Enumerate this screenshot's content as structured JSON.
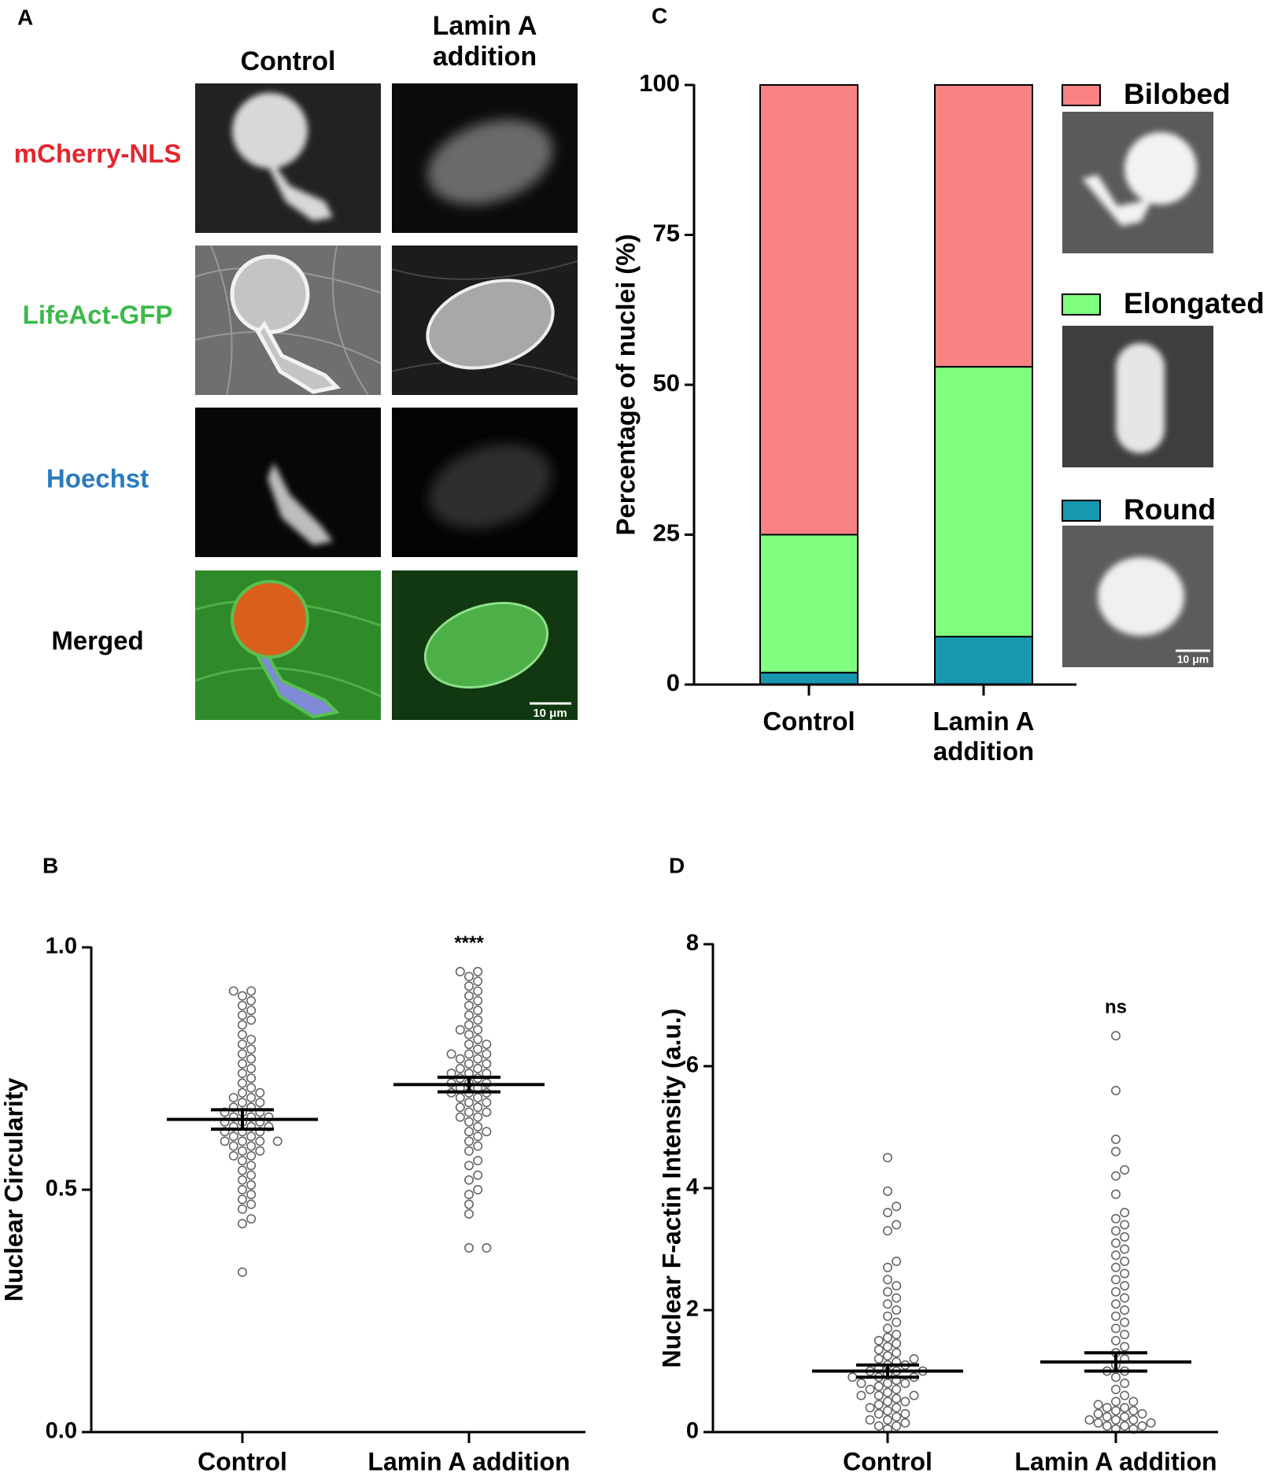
{
  "figure_a": {
    "panel": "A",
    "columns": [
      "Control",
      "Lamin A addition"
    ],
    "rows": [
      {
        "label": "mCherry-NLS",
        "color": "#e3262d"
      },
      {
        "label": "LifeAct-GFP",
        "color": "#3cb94a"
      },
      {
        "label": "Hoechst",
        "color": "#2a7bbf"
      },
      {
        "label": "Merged",
        "color": "#000000"
      }
    ],
    "scale_bar": "10 μm"
  },
  "chart_data": [
    {
      "type": "bar",
      "stacked": true,
      "panel": "C",
      "y_label": "Percentage of nuclei (%)",
      "categories": [
        "Control",
        "Lamin A addition"
      ],
      "series": [
        {
          "name": "Round",
          "color": "#1797b0",
          "values": [
            2,
            8
          ]
        },
        {
          "name": "Elongated",
          "color": "#80ff80",
          "values": [
            23,
            45
          ]
        },
        {
          "name": "Bilobed",
          "color": "#f98383",
          "values": [
            75,
            47
          ]
        }
      ],
      "ylim": [
        0,
        100
      ],
      "yticks": [
        0,
        25,
        50,
        75,
        100
      ],
      "legend": "right",
      "scale_bar": "10 μm"
    },
    {
      "type": "swarm",
      "panel": "B",
      "y_label": "Nuclear Circularity",
      "categories": [
        "Control",
        "Lamin A addition"
      ],
      "values": [
        [
          0.33,
          0.43,
          0.44,
          0.46,
          0.47,
          0.48,
          0.49,
          0.5,
          0.51,
          0.52,
          0.53,
          0.54,
          0.55,
          0.56,
          0.57,
          0.57,
          0.58,
          0.58,
          0.59,
          0.59,
          0.6,
          0.6,
          0.6,
          0.61,
          0.61,
          0.62,
          0.62,
          0.62,
          0.63,
          0.63,
          0.63,
          0.64,
          0.64,
          0.64,
          0.65,
          0.65,
          0.65,
          0.66,
          0.66,
          0.66,
          0.67,
          0.67,
          0.68,
          0.68,
          0.69,
          0.69,
          0.7,
          0.7,
          0.71,
          0.72,
          0.73,
          0.74,
          0.75,
          0.76,
          0.77,
          0.78,
          0.79,
          0.8,
          0.81,
          0.82,
          0.84,
          0.85,
          0.86,
          0.87,
          0.88,
          0.89,
          0.9,
          0.91,
          0.91,
          0.6
        ],
        [
          0.38,
          0.38,
          0.45,
          0.47,
          0.49,
          0.5,
          0.52,
          0.53,
          0.55,
          0.56,
          0.58,
          0.59,
          0.6,
          0.61,
          0.62,
          0.63,
          0.64,
          0.65,
          0.65,
          0.66,
          0.67,
          0.67,
          0.68,
          0.68,
          0.69,
          0.69,
          0.7,
          0.7,
          0.71,
          0.71,
          0.72,
          0.72,
          0.72,
          0.73,
          0.73,
          0.74,
          0.74,
          0.75,
          0.75,
          0.76,
          0.76,
          0.77,
          0.77,
          0.78,
          0.78,
          0.79,
          0.8,
          0.8,
          0.81,
          0.82,
          0.83,
          0.83,
          0.84,
          0.85,
          0.86,
          0.87,
          0.88,
          0.89,
          0.9,
          0.91,
          0.92,
          0.93,
          0.94,
          0.95,
          0.95,
          0.62,
          0.66,
          0.7,
          0.74,
          0.78
        ]
      ],
      "means": [
        0.645,
        0.717
      ],
      "errors": [
        0.02,
        0.015
      ],
      "annotations": [
        null,
        "****"
      ],
      "ylim": [
        0,
        1
      ],
      "yticks": [
        {
          "value": 0,
          "label": "0.0"
        },
        {
          "value": 0.5,
          "label": "0.5"
        },
        {
          "value": 1,
          "label": "1.0"
        }
      ]
    },
    {
      "type": "swarm",
      "panel": "D",
      "y_label": "Nuclear F-actin Intensity (a.u.)",
      "categories": [
        "Control",
        "Lamin A addition"
      ],
      "values": [
        [
          0.05,
          0.1,
          0.15,
          0.2,
          0.25,
          0.3,
          0.35,
          0.4,
          0.45,
          0.5,
          0.5,
          0.55,
          0.6,
          0.6,
          0.65,
          0.7,
          0.7,
          0.75,
          0.8,
          0.8,
          0.85,
          0.9,
          0.9,
          0.95,
          1.0,
          1.0,
          1.05,
          1.1,
          1.1,
          1.15,
          1.2,
          1.2,
          1.25,
          1.3,
          1.35,
          1.4,
          1.45,
          1.5,
          1.55,
          1.6,
          1.7,
          1.8,
          1.9,
          2.0,
          2.1,
          2.2,
          2.3,
          2.4,
          2.5,
          2.7,
          2.8,
          3.3,
          3.4,
          3.6,
          3.7,
          3.95,
          4.5,
          0.2,
          0.3,
          0.4,
          0.1,
          0.6,
          0.9,
          1.0,
          0.8
        ],
        [
          0.05,
          0.05,
          0.1,
          0.1,
          0.15,
          0.2,
          0.2,
          0.25,
          0.3,
          0.3,
          0.35,
          0.4,
          0.45,
          0.5,
          0.5,
          0.6,
          0.7,
          0.8,
          0.9,
          1.0,
          1.0,
          1.1,
          1.2,
          1.3,
          1.4,
          1.5,
          1.6,
          1.7,
          1.8,
          1.9,
          2.0,
          2.1,
          2.2,
          2.3,
          2.4,
          2.5,
          2.6,
          2.7,
          2.8,
          2.9,
          3.0,
          3.1,
          3.2,
          3.3,
          3.4,
          3.5,
          3.6,
          3.9,
          4.2,
          4.3,
          4.6,
          4.8,
          5.6,
          6.5,
          0.15,
          0.25,
          0.35,
          0.1,
          0.2,
          0.4
        ]
      ],
      "means": [
        1.0,
        1.15
      ],
      "errors": [
        0.1,
        0.15
      ],
      "annotations": [
        null,
        "ns"
      ],
      "ylim": [
        0,
        8
      ],
      "yticks": [
        0,
        2,
        4,
        6,
        8
      ]
    }
  ]
}
